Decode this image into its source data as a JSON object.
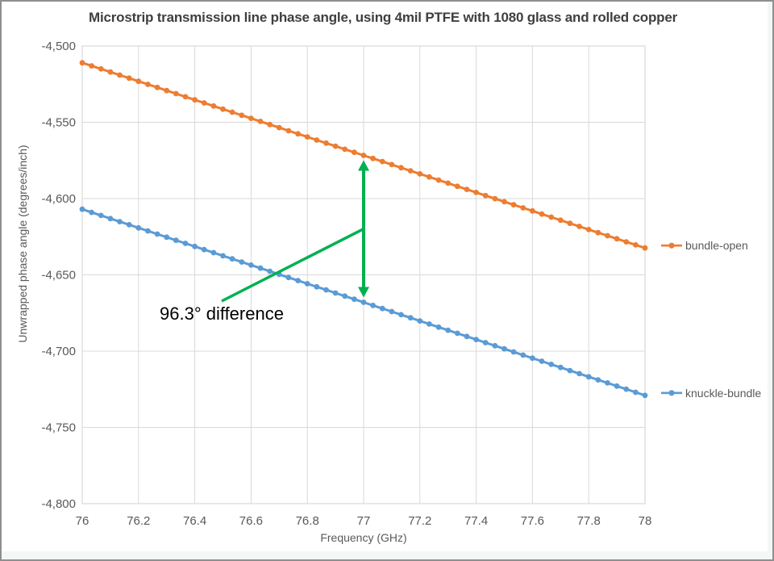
{
  "chart_data": {
    "type": "line",
    "title": "Microstrip transmission line phase angle, using 4mil PTFE with 1080 glass and rolled copper",
    "xlabel": "Frequency (GHz)",
    "ylabel": "Unwrapped phase angle (degrees/inch)",
    "xlim": [
      76,
      78
    ],
    "ylim": [
      -4800,
      -4500
    ],
    "grid": true,
    "legend_position": "right-of-line-ends",
    "x_ticks": [
      76,
      76.2,
      76.4,
      76.6,
      76.8,
      77,
      77.2,
      77.4,
      77.6,
      77.8,
      78
    ],
    "x_tick_labels": [
      "76",
      "76.2",
      "76.4",
      "76.6",
      "76.8",
      "77",
      "77.2",
      "77.4",
      "77.6",
      "77.8",
      "78"
    ],
    "y_ticks": [
      -4500,
      -4550,
      -4600,
      -4650,
      -4700,
      -4750,
      -4800
    ],
    "y_tick_labels": [
      "-4,500",
      "-4,550",
      "-4,600",
      "-4,650",
      "-4,700",
      "-4,750",
      "-4,800"
    ],
    "x_anchor": [
      76,
      76.2,
      76.4,
      76.6,
      76.8,
      77,
      77.2,
      77.4,
      77.6,
      77.8,
      78
    ],
    "series": [
      {
        "name": "bundle-open",
        "color": "#ED7D31",
        "n_markers": 61,
        "values": [
          -4511.0,
          -4523.1,
          -4535.3,
          -4547.4,
          -4559.6,
          -4571.7,
          -4583.8,
          -4596.0,
          -4608.1,
          -4620.3,
          -4632.4
        ]
      },
      {
        "name": "knuckle-bundle",
        "color": "#5B9BD5",
        "n_markers": 61,
        "values": [
          -4607.0,
          -4619.2,
          -4631.4,
          -4643.6,
          -4655.8,
          -4668.0,
          -4680.2,
          -4692.4,
          -4704.6,
          -4716.8,
          -4729.0
        ]
      }
    ],
    "annotation": {
      "text": "96.3° difference",
      "difference_deg": 96.3,
      "arrow_x_ghz": 77,
      "arrow_color": "#00B050"
    }
  },
  "style_colors": {
    "gridline": "#D9D9D9",
    "axis_text": "#595959",
    "title_text": "#3F3F3F"
  }
}
